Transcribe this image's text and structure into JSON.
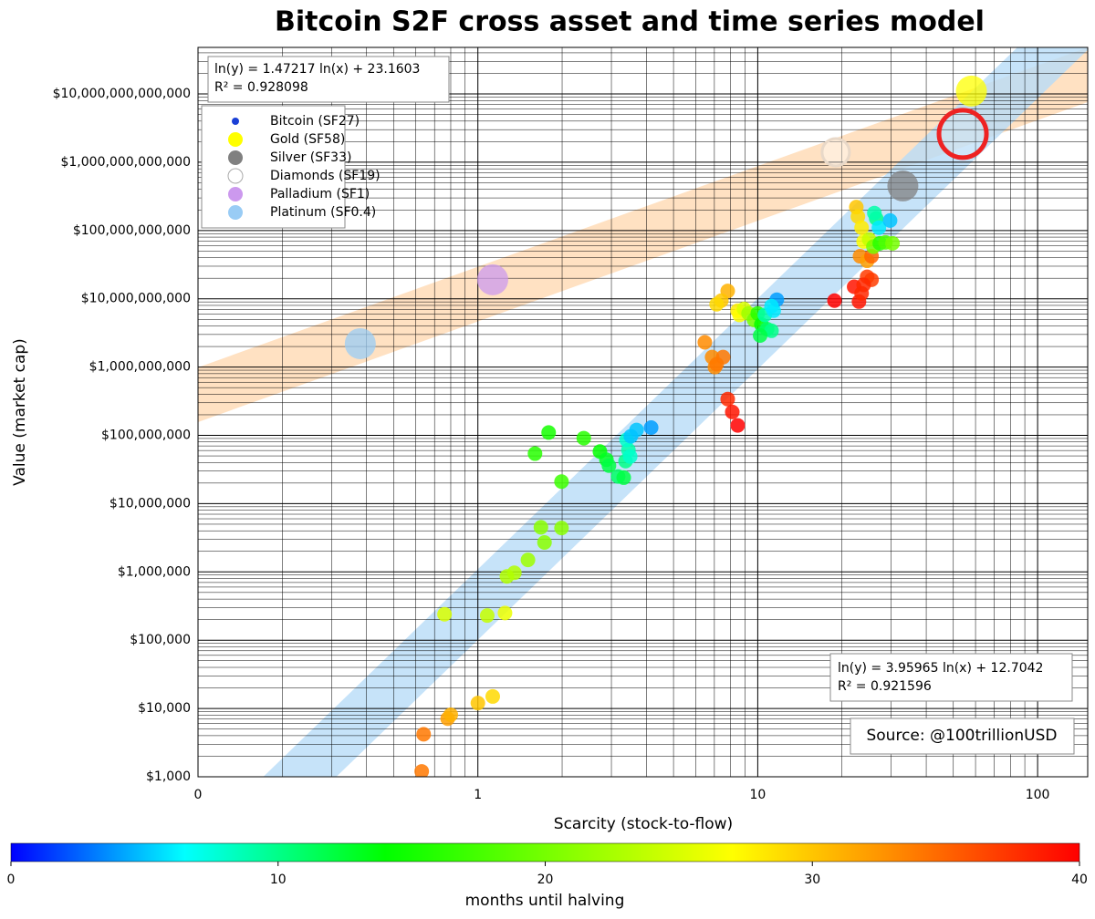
{
  "chart_data": {
    "type": "scatter",
    "title": "Bitcoin S2F cross asset and time series model",
    "xlabel": "Scarcity (stock-to-flow)",
    "ylabel": "Value (market cap)",
    "xlog": true,
    "ylog": true,
    "grid": true,
    "xlim": [
      0.1,
      151
    ],
    "ylim": [
      1000,
      48000000000000
    ],
    "xticks": [
      {
        "value": 0.1,
        "label": "0"
      },
      1,
      10,
      100
    ],
    "yticks": [
      {
        "value": 1000,
        "label": "$1,000"
      },
      {
        "value": 10000,
        "label": "$10,000"
      },
      {
        "value": 100000,
        "label": "$100,000"
      },
      {
        "value": 1000000,
        "label": "$1,000,000"
      },
      {
        "value": 10000000,
        "label": "$10,000,000"
      },
      {
        "value": 100000000,
        "label": "$100,000,000"
      },
      {
        "value": 1000000000,
        "label": "$1,000,000,000"
      },
      {
        "value": 10000000000,
        "label": "$10,000,000,000"
      },
      {
        "value": 100000000000,
        "label": "$100,000,000,000"
      },
      {
        "value": 1000000000000,
        "label": "$1,000,000,000,000"
      },
      {
        "value": 10000000000000,
        "label": "$10,000,000,000,000"
      }
    ],
    "legend": "upper left",
    "series": [
      {
        "name": "Bitcoin (SF27)",
        "color": "#1a3fd6",
        "x": [
          0.63,
          0.64,
          0.78,
          0.8,
          1.0,
          1.13,
          0.76,
          1.08,
          1.25,
          1.27,
          1.35,
          1.51,
          1.73,
          1.68,
          1.99,
          1.99,
          1.6,
          1.79,
          2.39,
          2.73,
          2.88,
          2.94,
          3.17,
          3.32,
          3.37,
          3.45,
          3.4,
          3.52,
          3.69,
          4.16,
          3.5,
          6.47,
          7.81,
          7.41,
          7.13,
          8.48,
          8.61,
          8.93,
          9.27,
          9.7,
          10,
          10.3,
          10.8,
          11.2,
          10.2,
          10.6,
          11.4,
          11.7,
          11.2,
          6.87,
          7.03,
          7.52,
          7.13,
          7.81,
          8.11,
          8.48,
          18.8,
          22.1,
          23.0,
          23.5,
          24.6,
          25.5,
          23.9,
          22.5,
          22.8,
          23.5,
          23.9,
          23.2,
          24.6,
          25.5,
          25.0,
          25.9,
          26.5,
          27.1,
          29.7,
          26.1,
          27.3,
          28.6,
          30.3
        ],
        "values": [
          1200,
          4200,
          7100,
          8100,
          12000,
          15000,
          240000,
          230000,
          250000,
          860000,
          970000,
          1500000,
          2700000,
          4500000,
          4400000,
          21000000,
          54000000,
          110000000,
          91000000,
          58000000,
          44000000,
          36000000,
          25000000,
          24000000,
          42000000,
          61000000,
          86000000,
          97000000,
          120000000,
          130000000,
          49000000,
          2300000000,
          13000000000,
          9400000000,
          8300000000,
          6700000000,
          5800000000,
          7100000000,
          6100000000,
          4900000000,
          6100000000,
          4200000000,
          3600000000,
          3400000000,
          2900000000,
          5800000000,
          6700000000,
          9700000000,
          7800000000,
          1400000000,
          1000000000,
          1400000000,
          1100000000,
          340000000,
          220000000,
          140000000,
          9400000000,
          15000000000,
          9100000000,
          12000000000,
          21000000000,
          19000000000,
          16000000000,
          220000000000,
          160000000000,
          110000000000,
          69000000000,
          42000000000,
          36000000000,
          42000000000,
          74000000000,
          58000000000,
          150000000000,
          110000000000,
          140000000000,
          180000000000,
          65000000000,
          67000000000,
          65000000000
        ],
        "months": [
          34,
          34,
          32,
          31,
          30,
          29,
          25,
          24,
          26,
          23,
          23,
          22,
          21,
          21,
          21,
          17,
          16,
          15,
          16,
          14,
          13,
          12,
          11,
          12,
          10,
          9,
          8,
          5,
          5,
          4,
          8,
          33,
          31,
          30,
          29,
          28,
          27,
          25,
          22,
          20,
          16,
          14,
          11,
          10,
          12,
          9,
          6,
          4,
          6,
          33,
          33,
          34,
          34,
          38,
          39,
          40,
          40,
          39,
          39,
          38,
          37,
          37,
          38,
          30,
          29,
          28,
          27,
          33,
          32,
          35,
          24,
          20,
          10,
          6,
          5,
          9,
          16,
          18,
          20
        ]
      },
      {
        "name": "Gold (SF58)",
        "color": "#ffff00",
        "x": [
          58
        ],
        "values": [
          11000000000000
        ]
      },
      {
        "name": "Silver (SF33)",
        "color": "#808080",
        "x": [
          33
        ],
        "values": [
          450000000000
        ]
      },
      {
        "name": "Diamonds (SF19)",
        "color": "#ffffff",
        "hollow": true,
        "x": [
          19
        ],
        "values": [
          1400000000000
        ]
      },
      {
        "name": "Palladium (SF1)",
        "color": "#cc99ee",
        "x": [
          1.13
        ],
        "values": [
          19000000000
        ]
      },
      {
        "name": "Platinum (SF0.4)",
        "color": "#99ccf5",
        "x": [
          0.38
        ],
        "values": [
          2200000000
        ]
      },
      {
        "color": "#ee2222",
        "hollow": true,
        "x": [
          54
        ],
        "values": [
          2600000000000
        ]
      }
    ],
    "annotations": [
      {
        "lines": [
          "ln(y) = 1.47217 ln(x) + 23.1603",
          "R² = 0.928098"
        ]
      },
      {
        "lines": [
          "ln(y) = 3.95965 ln(x) + 12.7042",
          "R² = 0.921596"
        ]
      },
      {
        "lines": [
          "Source: @100trillionUSD"
        ]
      }
    ],
    "colorbar": {
      "label": "months until halving",
      "lim": [
        0,
        40
      ],
      "ticks": [
        0,
        10,
        20,
        30,
        40
      ],
      "stops": [
        [
          0,
          "#0000ff"
        ],
        [
          6.5,
          "#00ffff"
        ],
        [
          14,
          "#00ff00"
        ],
        [
          27,
          "#ffff00"
        ],
        [
          33,
          "#ff8c00"
        ],
        [
          40,
          "#ff0000"
        ]
      ]
    }
  }
}
